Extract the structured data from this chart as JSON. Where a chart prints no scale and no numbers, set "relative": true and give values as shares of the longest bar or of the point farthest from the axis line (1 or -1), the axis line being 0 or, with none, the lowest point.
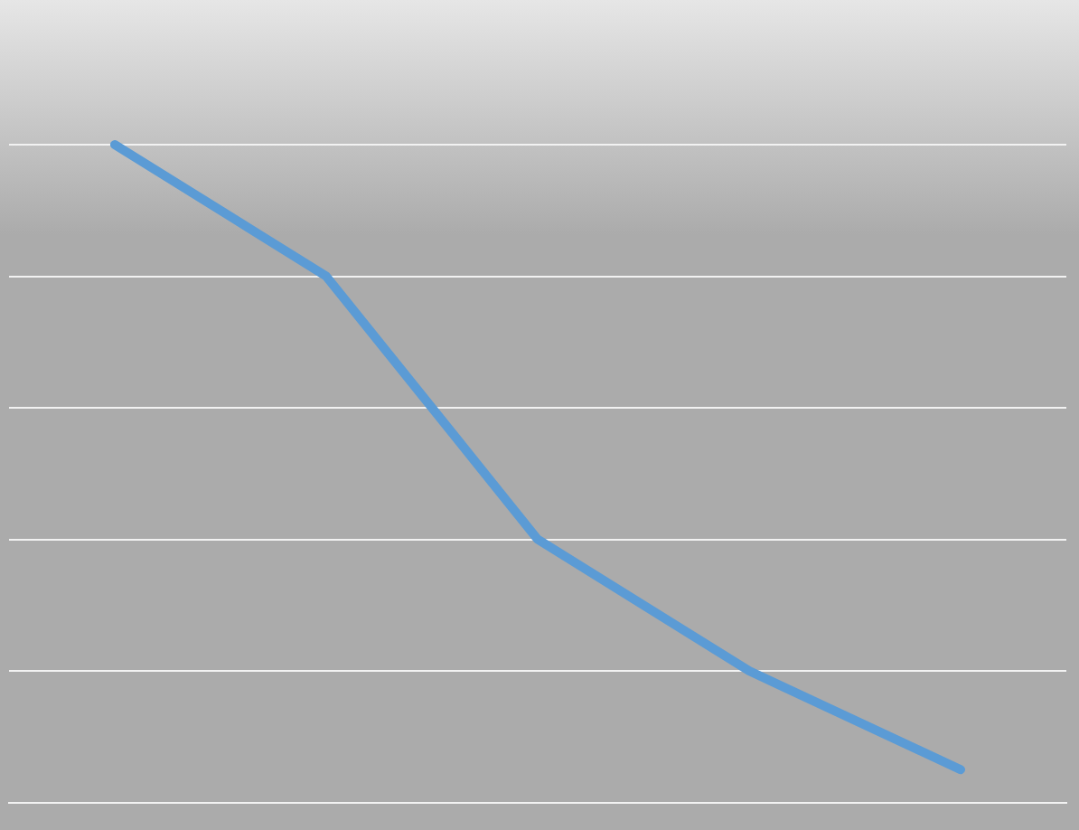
{
  "chart_data": {
    "type": "line",
    "relative": true,
    "categories": [
      null,
      null,
      null,
      null,
      null
    ],
    "series": [
      {
        "color": "#5b9bd5",
        "values": [
          1,
          0.8,
          0.4,
          0.2,
          0.05
        ]
      }
    ],
    "grid": "y",
    "legend": false,
    "marker": "none",
    "line_style": "solid"
  }
}
